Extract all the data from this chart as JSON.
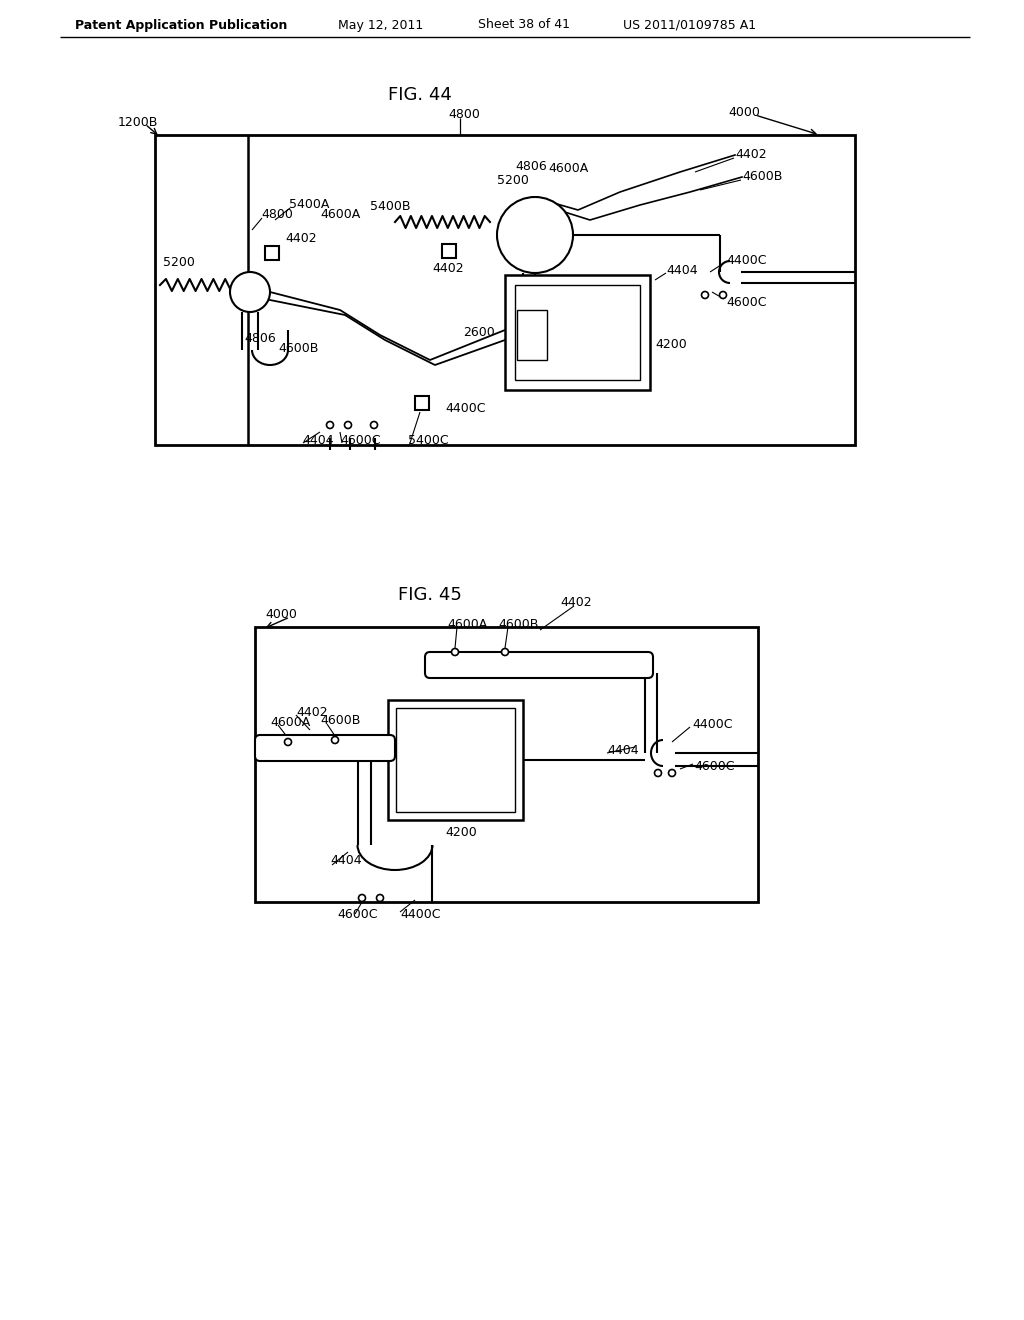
{
  "bg_color": "#ffffff",
  "header_text": "Patent Application Publication",
  "header_date": "May 12, 2011",
  "header_sheet": "Sheet 38 of 41",
  "header_patent": "US 2011/0109785 A1",
  "fig44_title": "FIG. 44",
  "fig45_title": "FIG. 45",
  "line_color": "#000000",
  "text_color": "#000000"
}
